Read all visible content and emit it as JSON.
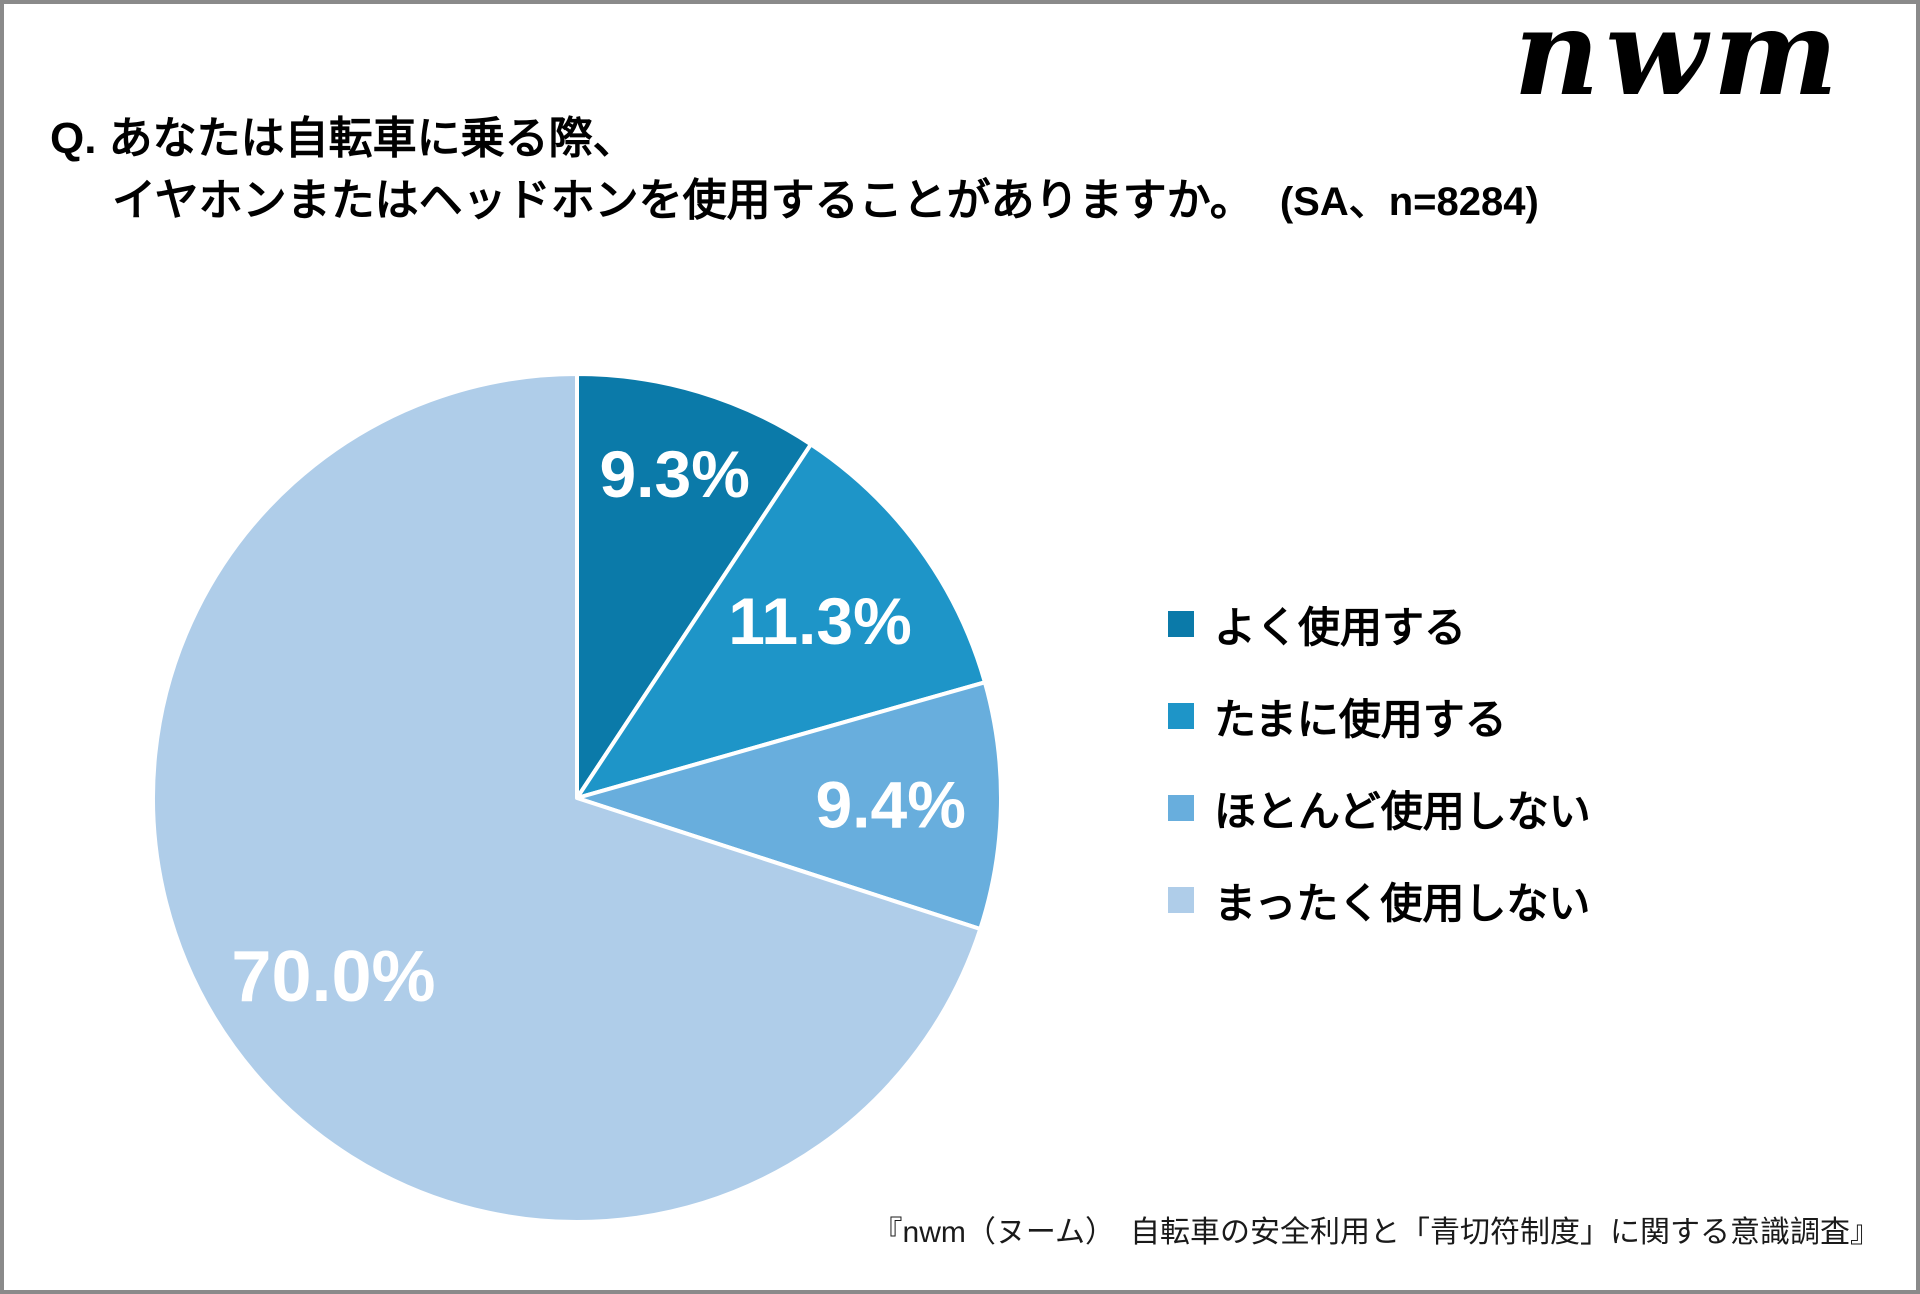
{
  "page": {
    "logo_text": "nwm",
    "border_color": "#8a8a8a"
  },
  "header": {
    "question_line1": "Q. あなたは自転車に乗る際、",
    "question_line2": "イヤホンまたはヘッドホンを使用することがありますか。",
    "sample_note": "(SA、n=8284)"
  },
  "chart_data": {
    "type": "pie",
    "title": "あなたは自転車に乗る際、イヤホンまたはヘッドホンを使用することがありますか。",
    "sample_note": "(SA、n=8284)",
    "start_angle_deg": -90,
    "direction": "clockwise",
    "legend_position": "right",
    "label_color": "#ffffff",
    "slices": [
      {
        "label": "よく使用する",
        "value_pct": 9.3,
        "display": "9.3%",
        "color": "#0b7aa9"
      },
      {
        "label": "たまに使用する",
        "value_pct": 11.3,
        "display": "11.3%",
        "color": "#1e95c8"
      },
      {
        "label": "ほとんど使用しない",
        "value_pct": 9.4,
        "display": "9.4%",
        "color": "#68aedd"
      },
      {
        "label": "まったく使用しない",
        "value_pct": 70.0,
        "display": "70.0%",
        "color": "#afcde9"
      }
    ]
  },
  "footer": {
    "source": "『nwm（ヌーム）　自転車の安全利用と「青切符制度」に関する意識調査』"
  }
}
